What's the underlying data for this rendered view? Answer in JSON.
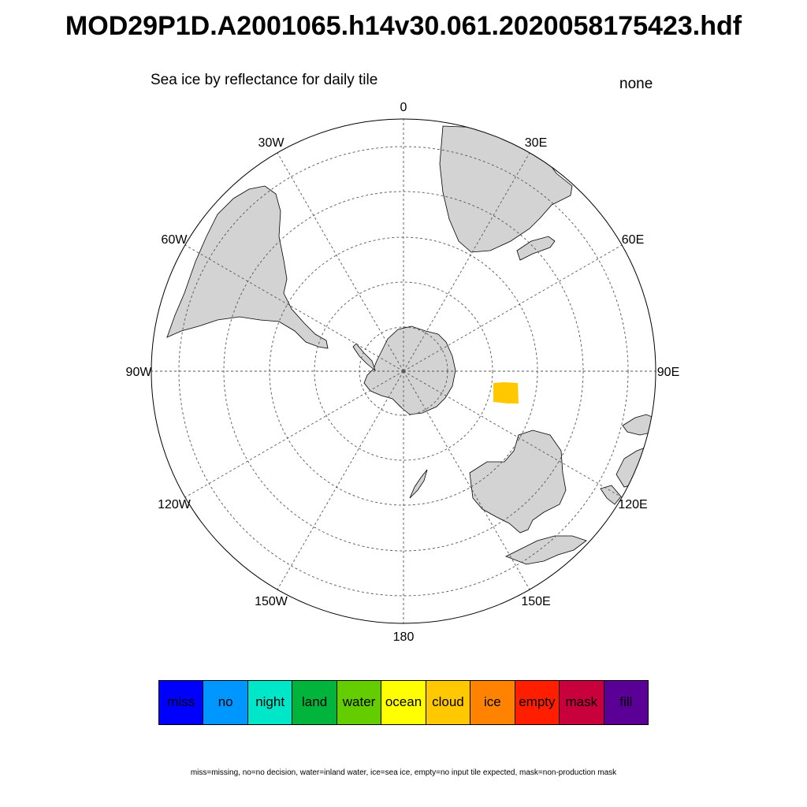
{
  "title": "MOD29P1D.A2001065.h14v30.061.2020058175423.hdf",
  "subtitle": "Sea ice by reflectance for daily tile",
  "units": "none",
  "map": {
    "projection": "south polar stereographic",
    "longitude_labels": [
      {
        "lon": 0,
        "text": "0"
      },
      {
        "lon": 30,
        "text": "30E"
      },
      {
        "lon": 60,
        "text": "60E"
      },
      {
        "lon": 90,
        "text": "90E"
      },
      {
        "lon": 120,
        "text": "120E"
      },
      {
        "lon": 150,
        "text": "150E"
      },
      {
        "lon": 180,
        "text": "180"
      },
      {
        "lon": -150,
        "text": "150W"
      },
      {
        "lon": -120,
        "text": "120W"
      },
      {
        "lon": -90,
        "text": "90W"
      },
      {
        "lon": -60,
        "text": "60W"
      },
      {
        "lon": -30,
        "text": "30W"
      }
    ],
    "gridlines": "dashed",
    "land_color": "#d3d3d3",
    "data_patch": {
      "category": "cloud",
      "color": "#ffc800"
    }
  },
  "legend": [
    {
      "label": "miss",
      "color": "#0000ff"
    },
    {
      "label": "no",
      "color": "#0096ff"
    },
    {
      "label": "night",
      "color": "#00e6c8"
    },
    {
      "label": "land",
      "color": "#00b43c"
    },
    {
      "label": "water",
      "color": "#64cd00"
    },
    {
      "label": "ocean",
      "color": "#ffff00"
    },
    {
      "label": "cloud",
      "color": "#ffc800"
    },
    {
      "label": "ice",
      "color": "#ff8200"
    },
    {
      "label": "empty",
      "color": "#ff1e00"
    },
    {
      "label": "mask",
      "color": "#c8003c"
    },
    {
      "label": "fill",
      "color": "#5a0096"
    }
  ],
  "footnote": "miss=missing, no=no decision, water=inland water, ice=sea ice, empty=no input tile expected, mask=non-production mask"
}
